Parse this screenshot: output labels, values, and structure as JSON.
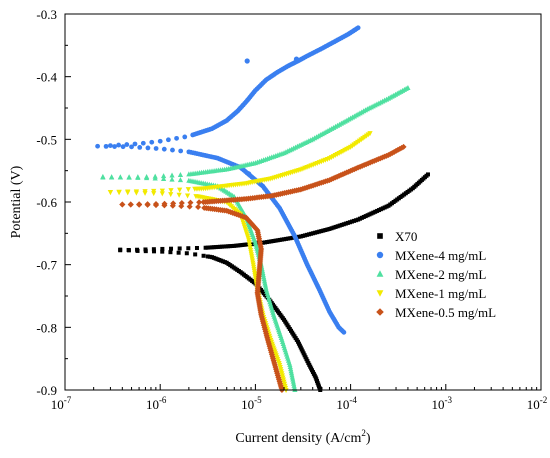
{
  "chart_data": {
    "type": "scatter",
    "xlabel": "Current density (A/cm",
    "xlabel_sup": "2",
    "xlabel_suffix": ")",
    "ylabel": "Potential (V)",
    "xscale": "log",
    "xlim": [
      1e-07,
      0.01
    ],
    "ylim": [
      -0.9,
      -0.3
    ],
    "x_ticks": [
      {
        "value": 1e-07,
        "base": "10",
        "exp": "-7"
      },
      {
        "value": 1e-06,
        "base": "10",
        "exp": "-6"
      },
      {
        "value": 1e-05,
        "base": "10",
        "exp": "-5"
      },
      {
        "value": 0.0001,
        "base": "10",
        "exp": "-4"
      },
      {
        "value": 0.001,
        "base": "10",
        "exp": "-3"
      },
      {
        "value": 0.01,
        "base": "10",
        "exp": "-2"
      }
    ],
    "y_ticks": [
      {
        "value": -0.3,
        "label": "-0.3"
      },
      {
        "value": -0.4,
        "label": "-0.4"
      },
      {
        "value": -0.5,
        "label": "-0.5"
      },
      {
        "value": -0.6,
        "label": "-0.6"
      },
      {
        "value": -0.7,
        "label": "-0.7"
      },
      {
        "value": -0.8,
        "label": "-0.8"
      },
      {
        "value": -0.9,
        "label": "-0.9"
      }
    ],
    "grid": false,
    "legend_position": "right",
    "series": [
      {
        "name": "X70",
        "color": "#000000",
        "marker": "square",
        "ecorr": -0.677,
        "icorr": 9e-06,
        "cathodic": [
          [
            3.8e-07,
            -0.676
          ],
          [
            5.5e-07,
            -0.678
          ],
          [
            1e-06,
            -0.679
          ],
          [
            2e-06,
            -0.682
          ],
          [
            3.5e-06,
            -0.688
          ],
          [
            5e-06,
            -0.697
          ],
          [
            7e-06,
            -0.712
          ],
          [
            1e-05,
            -0.73
          ],
          [
            1.4e-05,
            -0.756
          ],
          [
            2e-05,
            -0.788
          ],
          [
            2.8e-05,
            -0.823
          ],
          [
            3.6e-05,
            -0.857
          ],
          [
            4.3e-05,
            -0.88
          ],
          [
            4.8e-05,
            -0.9
          ]
        ],
        "anodic": [
          [
            3.8e-07,
            -0.677
          ],
          [
            1e-06,
            -0.675
          ],
          [
            3e-06,
            -0.673
          ],
          [
            6e-06,
            -0.67
          ],
          [
            1.2e-05,
            -0.665
          ],
          [
            3e-05,
            -0.655
          ],
          [
            6e-05,
            -0.643
          ],
          [
            0.00012,
            -0.628
          ],
          [
            0.00025,
            -0.606
          ],
          [
            0.00045,
            -0.578
          ],
          [
            0.00065,
            -0.556
          ]
        ]
      },
      {
        "name": "MXene-4 mg/mL",
        "color": "#3a7ff0",
        "marker": "circle",
        "ecorr": -0.51,
        "icorr": 6e-06,
        "cathodic": [
          [
            2.2e-07,
            -0.511
          ],
          [
            5e-07,
            -0.512
          ],
          [
            1e-06,
            -0.515
          ],
          [
            2e-06,
            -0.52
          ],
          [
            4e-06,
            -0.53
          ],
          [
            7e-06,
            -0.545
          ],
          [
            1.2e-05,
            -0.575
          ],
          [
            1.8e-05,
            -0.61
          ],
          [
            2.6e-05,
            -0.655
          ],
          [
            3.5e-05,
            -0.7
          ],
          [
            4.7e-05,
            -0.74
          ],
          [
            6e-05,
            -0.775
          ],
          [
            7.5e-05,
            -0.8
          ],
          [
            8.5e-05,
            -0.808
          ]
        ],
        "anodic": [
          [
            3e-07,
            -0.51
          ],
          [
            6e-07,
            -0.507
          ],
          [
            1e-06,
            -0.503
          ],
          [
            2e-06,
            -0.495
          ],
          [
            3.5e-06,
            -0.483
          ],
          [
            5e-06,
            -0.47
          ],
          [
            6.5e-06,
            -0.455
          ],
          [
            8e-06,
            -0.44
          ],
          [
            1e-05,
            -0.422
          ],
          [
            1.3e-05,
            -0.405
          ],
          [
            1.7e-05,
            -0.393
          ],
          [
            2.2e-05,
            -0.383
          ],
          [
            2.8e-05,
            -0.375
          ],
          [
            3.5e-05,
            -0.367
          ],
          [
            5e-05,
            -0.355
          ],
          [
            7e-05,
            -0.343
          ],
          [
            9.5e-05,
            -0.332
          ],
          [
            0.00012,
            -0.322
          ]
        ],
        "outliers": [
          [
            8.2e-06,
            -0.375
          ],
          [
            8.5e-06,
            -0.555
          ],
          [
            2.7e-05,
            -0.372
          ]
        ]
      },
      {
        "name": "MXene-2 mg/mL",
        "color": "#4fe0a0",
        "marker": "triangle-up",
        "ecorr": -0.56,
        "icorr": 6e-06,
        "cathodic": [
          [
            2.5e-07,
            -0.56
          ],
          [
            8e-07,
            -0.562
          ],
          [
            2e-06,
            -0.566
          ],
          [
            4e-06,
            -0.575
          ],
          [
            6e-06,
            -0.592
          ],
          [
            8e-06,
            -0.625
          ],
          [
            1e-05,
            -0.665
          ],
          [
            1.15e-05,
            -0.7
          ],
          [
            1.3e-05,
            -0.74
          ],
          [
            1.55e-05,
            -0.78
          ],
          [
            1.9e-05,
            -0.82
          ],
          [
            2.3e-05,
            -0.86
          ],
          [
            2.6e-05,
            -0.9
          ]
        ],
        "anodic": [
          [
            2.5e-07,
            -0.561
          ],
          [
            8e-07,
            -0.56
          ],
          [
            2e-06,
            -0.556
          ],
          [
            5e-06,
            -0.548
          ],
          [
            1e-05,
            -0.538
          ],
          [
            2e-05,
            -0.522
          ],
          [
            4e-05,
            -0.5
          ],
          [
            8e-05,
            -0.475
          ],
          [
            0.00015,
            -0.452
          ],
          [
            0.00025,
            -0.435
          ],
          [
            0.0004,
            -0.418
          ]
        ]
      },
      {
        "name": "MXene-1 mg/mL",
        "color": "#f2ea00",
        "marker": "triangle-down",
        "ecorr": -0.583,
        "icorr": 6.5e-06,
        "cathodic": [
          [
            3e-07,
            -0.584
          ],
          [
            1e-06,
            -0.586
          ],
          [
            2.5e-06,
            -0.591
          ],
          [
            5e-06,
            -0.6
          ],
          [
            7e-06,
            -0.62
          ],
          [
            8.5e-06,
            -0.66
          ],
          [
            9.5e-06,
            -0.7
          ],
          [
            1.05e-05,
            -0.74
          ],
          [
            1.2e-05,
            -0.78
          ],
          [
            1.45e-05,
            -0.82
          ],
          [
            1.8e-05,
            -0.86
          ],
          [
            2.1e-05,
            -0.9
          ]
        ],
        "anodic": [
          [
            3e-07,
            -0.584
          ],
          [
            1e-06,
            -0.582
          ],
          [
            3e-06,
            -0.578
          ],
          [
            8e-06,
            -0.57
          ],
          [
            1.5e-05,
            -0.562
          ],
          [
            3e-05,
            -0.548
          ],
          [
            6e-05,
            -0.53
          ],
          [
            0.0001,
            -0.512
          ],
          [
            0.00016,
            -0.49
          ]
        ]
      },
      {
        "name": "MXene-0.5 mg/mL",
        "color": "#c8521a",
        "marker": "diamond",
        "ecorr": -0.604,
        "icorr": 8e-06,
        "cathodic": [
          [
            4e-07,
            -0.604
          ],
          [
            1e-06,
            -0.605
          ],
          [
            2.5e-06,
            -0.608
          ],
          [
            5e-06,
            -0.614
          ],
          [
            8e-06,
            -0.625
          ],
          [
            1.05e-05,
            -0.645
          ],
          [
            1.15e-05,
            -0.675
          ],
          [
            1.1e-05,
            -0.71
          ],
          [
            1.05e-05,
            -0.745
          ],
          [
            1.15e-05,
            -0.78
          ],
          [
            1.35e-05,
            -0.82
          ],
          [
            1.6e-05,
            -0.86
          ],
          [
            1.9e-05,
            -0.9
          ]
        ],
        "anodic": [
          [
            4e-07,
            -0.604
          ],
          [
            1e-06,
            -0.603
          ],
          [
            3e-06,
            -0.6
          ],
          [
            8e-06,
            -0.595
          ],
          [
            1.5e-05,
            -0.59
          ],
          [
            3e-05,
            -0.58
          ],
          [
            6e-05,
            -0.565
          ],
          [
            0.00012,
            -0.545
          ],
          [
            0.00025,
            -0.525
          ],
          [
            0.00036,
            -0.512
          ]
        ]
      }
    ]
  }
}
